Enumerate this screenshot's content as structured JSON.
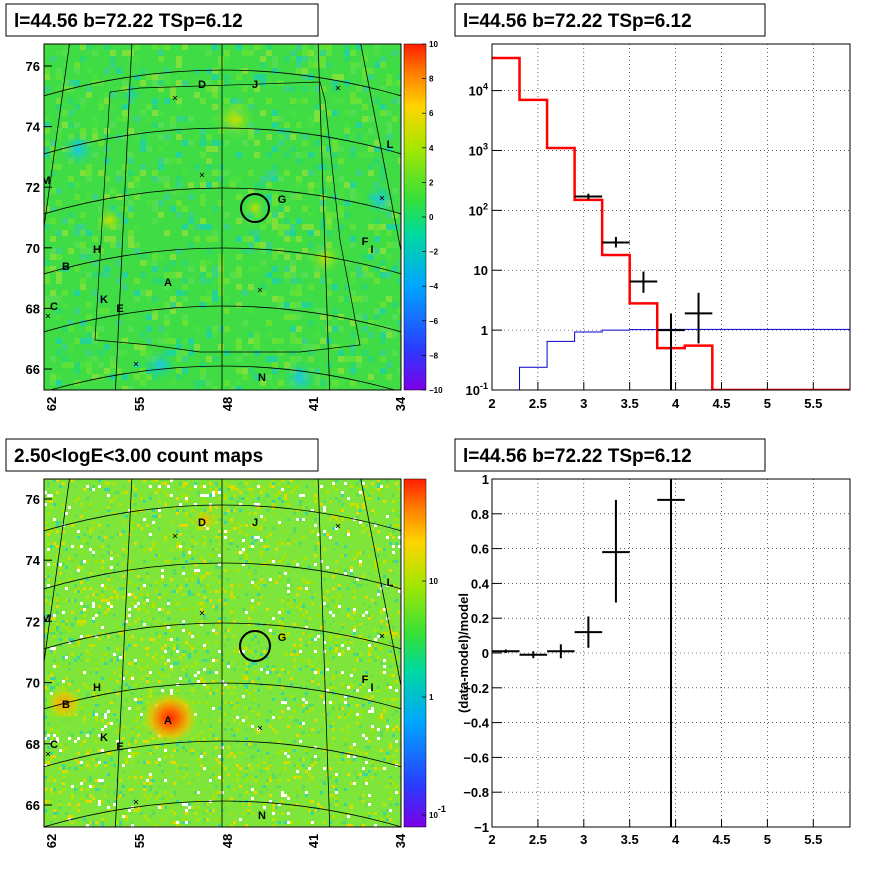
{
  "chart_data": [
    {
      "id": "map_residual",
      "type": "heatmap",
      "title": "l=44.56 b=72.22 TSp=6.12",
      "xticks": [
        "62",
        "55",
        "48",
        "41",
        "34"
      ],
      "yticks": [
        "66",
        "68",
        "70",
        "72",
        "74",
        "76"
      ],
      "zticks": [
        "10",
        "8",
        "6",
        "4",
        "2",
        "0",
        "−2",
        "−4",
        "−6",
        "−8",
        "−10"
      ],
      "zrange": [
        -10,
        10
      ],
      "z_scale": "linear",
      "sources": [
        "A",
        "B",
        "C",
        "D",
        "E",
        "F",
        "G",
        "H",
        "I",
        "J",
        "K",
        "L",
        "M",
        "N"
      ],
      "grid": true
    },
    {
      "id": "spectrum",
      "type": "line",
      "title": "l=44.56 b=72.22 TSp=6.12",
      "y_scale": "log",
      "xlim": [
        2,
        5.9
      ],
      "ylim": [
        0.1,
        60000
      ],
      "xticks": [
        "2",
        "2.5",
        "3",
        "3.5",
        "4",
        "4.5",
        "5",
        "5.5"
      ],
      "yticks": [
        "10^-1",
        "1",
        "10",
        "10^2",
        "10^3",
        "10^4"
      ],
      "grid": true,
      "series": [
        {
          "role": "total-model-histogram",
          "color": "#ff0000",
          "edges": [
            2.0,
            2.3,
            2.6,
            2.9,
            3.2,
            3.5,
            3.8,
            4.1,
            4.4,
            4.7,
            5.0,
            5.3,
            5.6,
            5.9
          ],
          "values": [
            35000,
            7000,
            1100,
            150,
            18,
            2.8,
            0.5,
            0.55,
            0.1,
            0.1,
            0.1,
            0.1,
            0.1
          ]
        },
        {
          "role": "source-model-histogram",
          "color": "#0000cc",
          "edges": [
            2.0,
            2.3,
            2.6,
            2.9,
            3.2,
            3.5,
            3.8,
            4.1,
            4.4,
            4.7,
            5.0,
            5.3,
            5.6,
            5.9
          ],
          "values": [
            0.05,
            0.24,
            0.65,
            0.93,
            1.0,
            1.02,
            1.03,
            1.03,
            1.03,
            1.03,
            1.03,
            1.03,
            1.03
          ]
        },
        {
          "role": "data-points",
          "color": "#000000",
          "points": [
            {
              "x": 3.05,
              "y": 170,
              "xerr": 0.15,
              "ylo": 150,
              "yhi": 190
            },
            {
              "x": 3.35,
              "y": 29,
              "xerr": 0.15,
              "ylo": 24,
              "yhi": 36
            },
            {
              "x": 3.65,
              "y": 6.5,
              "xerr": 0.15,
              "ylo": 4.2,
              "yhi": 9.5
            },
            {
              "x": 3.95,
              "y": 1.0,
              "xerr": 0.15,
              "ylo": 0.1,
              "yhi": 1.9
            },
            {
              "x": 4.25,
              "y": 1.9,
              "xerr": 0.15,
              "ylo": 0.6,
              "yhi": 4.2
            }
          ]
        }
      ]
    },
    {
      "id": "map_counts",
      "type": "heatmap",
      "title": "2.50<logE<3.00 count maps",
      "xticks": [
        "62",
        "55",
        "48",
        "41",
        "34"
      ],
      "yticks": [
        "66",
        "68",
        "70",
        "72",
        "74",
        "76"
      ],
      "zticks": [
        "10",
        "1",
        "10^-1"
      ],
      "z_scale": "log",
      "sources": [
        "A",
        "B",
        "C",
        "D",
        "E",
        "F",
        "G",
        "H",
        "I",
        "J",
        "K",
        "L",
        "M",
        "N"
      ],
      "grid": true
    },
    {
      "id": "residual",
      "type": "scatter",
      "title": "l=44.56 b=72.22 TSp=6.12",
      "ylabel": "(data-model)/model",
      "xlim": [
        2,
        5.9
      ],
      "ylim": [
        -1,
        1
      ],
      "xticks": [
        "2",
        "2.5",
        "3",
        "3.5",
        "4",
        "4.5",
        "5",
        "5.5"
      ],
      "yticks": [
        "1",
        "0.8",
        "0.6",
        "0.4",
        "0.2",
        "0",
        "−0.2",
        "−0.4",
        "−0.6",
        "−0.8",
        "−1"
      ],
      "grid": true,
      "points": [
        {
          "x": 2.15,
          "y": 0.01,
          "xerr": 0.15,
          "ylo": 0.0,
          "yhi": 0.02
        },
        {
          "x": 2.45,
          "y": -0.01,
          "xerr": 0.15,
          "ylo": -0.03,
          "yhi": 0.01
        },
        {
          "x": 2.75,
          "y": 0.01,
          "xerr": 0.15,
          "ylo": -0.03,
          "yhi": 0.05
        },
        {
          "x": 3.05,
          "y": 0.12,
          "xerr": 0.15,
          "ylo": 0.03,
          "yhi": 0.21
        },
        {
          "x": 3.35,
          "y": 0.58,
          "xerr": 0.15,
          "ylo": 0.29,
          "yhi": 0.88
        },
        {
          "x": 3.95,
          "y": 0.88,
          "xerr": 0.15,
          "ylo": -1.0,
          "yhi": 1.0
        }
      ]
    }
  ]
}
